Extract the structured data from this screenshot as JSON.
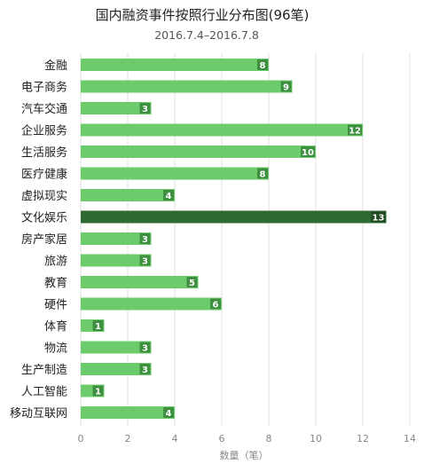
{
  "chart_data": {
    "type": "bar",
    "orientation": "horizontal",
    "title": "国内融资事件按照行业分布图(96笔)",
    "subtitle": "2016.7.4–2016.7.8",
    "xlabel": "数量（笔）",
    "ylabel": "",
    "xlim": [
      0,
      14
    ],
    "xticks": [
      0,
      2,
      4,
      6,
      8,
      10,
      12,
      14
    ],
    "grid": "vertical",
    "categories": [
      "金融",
      "电子商务",
      "汽车交通",
      "企业服务",
      "生活服务",
      "医疗健康",
      "虚拟现实",
      "文化娱乐",
      "房产家居",
      "旅游",
      "教育",
      "硬件",
      "体育",
      "物流",
      "生产制造",
      "人工智能",
      "移动互联网"
    ],
    "values": [
      8,
      9,
      3,
      12,
      10,
      8,
      4,
      13,
      3,
      3,
      5,
      6,
      1,
      3,
      3,
      1,
      4
    ],
    "highlight_category": "文化娱乐",
    "colors": {
      "bar": "#6ccc6c",
      "highlight": "#2f6a33",
      "grid": "#e2e2e2",
      "axis_text": "#888888",
      "category_text": "#222222",
      "label_bg": "#3f8f41"
    }
  }
}
